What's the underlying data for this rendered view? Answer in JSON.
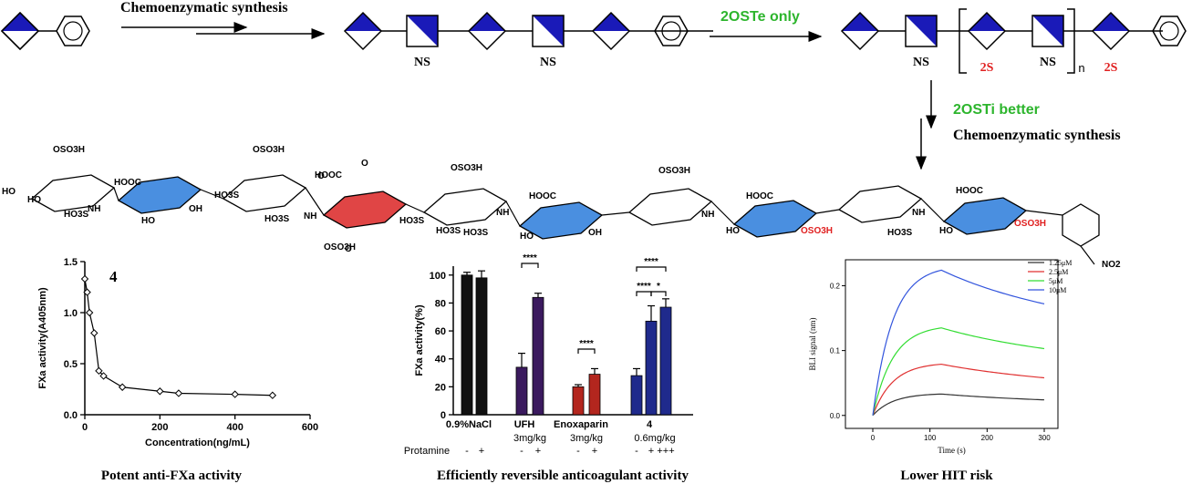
{
  "scheme": {
    "step1": "Chemoenzymatic synthesis",
    "step2": "2OSTe only",
    "step3": "2OSTi better",
    "step4": "Chemoenzymatic synthesis",
    "ns": "NS",
    "s2": "2S",
    "n": "n"
  },
  "structure": {
    "labels": [
      "OSO3H",
      "HO",
      "HO",
      "NH",
      "HO3S",
      "HOOC",
      "HO",
      "OH",
      "OSO3H",
      "HO3S",
      "O",
      "NH",
      "HO3S",
      "OSO3H",
      "HOOC",
      "HO3S",
      "O",
      "O",
      "NH",
      "HO3S",
      "HOOC",
      "HO",
      "OH",
      "OSO3H",
      "HO3S",
      "NH",
      "HOOC",
      "HO",
      "OSO3H",
      "OSO3H",
      "NH",
      "HO3S",
      "HOOC",
      "HO",
      "OSO3H",
      "NO2"
    ]
  },
  "colors": {
    "glcA": "#4a8fe0",
    "idoA": "#e03b3b",
    "dark": "#000000",
    "bar_black": "#111111",
    "bar_purple": "#3b1a5e",
    "bar_red": "#b3261e",
    "bar_blue": "#1f2a8c",
    "green": "#2db52d"
  },
  "panels": {
    "fxa": {
      "caption": "Potent anti-FXa activity",
      "compound": "4",
      "chart_data": {
        "type": "line",
        "xlabel": "Concentration(ng/mL)",
        "ylabel": "FXa activity(A405nm)",
        "xlim": [
          0,
          600
        ],
        "ylim": [
          0,
          1.5
        ],
        "xticks": [
          "0",
          "200",
          "400",
          "600"
        ],
        "yticks": [
          "0.0",
          "0.5",
          "1.0",
          "1.5"
        ],
        "x": [
          0,
          6.25,
          12.5,
          25,
          37.5,
          50,
          100,
          200,
          250,
          400,
          500
        ],
        "y": [
          1.33,
          1.2,
          1.0,
          0.8,
          0.43,
          0.38,
          0.27,
          0.23,
          0.21,
          0.2,
          0.19
        ]
      }
    },
    "anticoag": {
      "caption": "Efficiently reversible anticoagulant activity",
      "chart_data": {
        "type": "bar",
        "ylabel": "FXa activity(%)",
        "ylim": [
          0,
          100
        ],
        "yticks": [
          "0",
          "20",
          "40",
          "60",
          "80",
          "100"
        ],
        "groups": [
          "0.9%NaCl",
          "UFH",
          "Enoxaparin",
          "4"
        ],
        "group_doses": [
          "",
          "3mg/kg",
          "3mg/kg",
          "0.6mg/kg"
        ],
        "protamine_label": "Protamine",
        "protamine": [
          "-",
          "+",
          "-",
          "+",
          "-",
          "+",
          "-",
          "+",
          "+++"
        ],
        "values": [
          100,
          98,
          34,
          84,
          20,
          29,
          28,
          67,
          77
        ],
        "errors": [
          2,
          5,
          10,
          3,
          1.5,
          4,
          5,
          11,
          6
        ],
        "significance": [
          "****",
          "****",
          "****",
          "****",
          "*"
        ]
      }
    },
    "bli": {
      "caption": "Lower HIT risk",
      "chart_data": {
        "type": "line",
        "xlabel": "Time (s)",
        "ylabel": "BLI signal (nm)",
        "xlim": [
          0,
          300
        ],
        "ylim": [
          -0.02,
          0.24
        ],
        "xticks": [
          "0",
          "100",
          "200",
          "300"
        ],
        "yticks": [
          "0.0",
          "0.1",
          "0.2"
        ],
        "series": [
          {
            "name": "1.25μM",
            "color": "#333333",
            "peak": 0.033,
            "end": 0.024
          },
          {
            "name": "2.5μM",
            "color": "#e03030",
            "peak": 0.079,
            "end": 0.058
          },
          {
            "name": "5μM",
            "color": "#33dd33",
            "peak": 0.135,
            "end": 0.103
          },
          {
            "name": "10μM",
            "color": "#3355dd",
            "peak": 0.224,
            "end": 0.172
          }
        ]
      }
    }
  }
}
